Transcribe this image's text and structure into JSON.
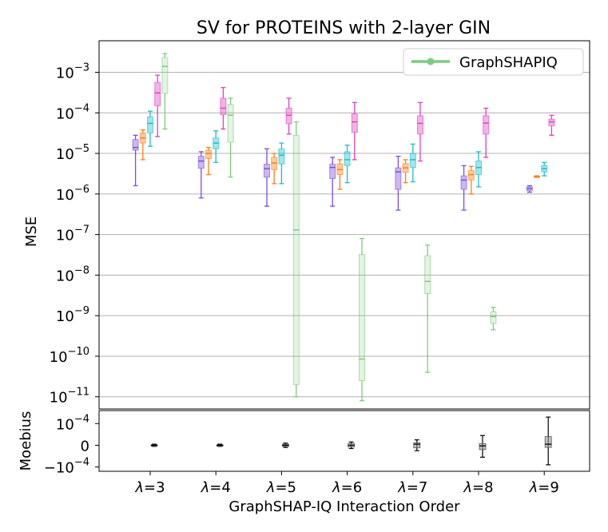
{
  "chart_data": {
    "type": "box",
    "title": "SV for PROTEINS with 2-layer GIN",
    "xlabel": "GraphSHAP-IQ Interaction Order",
    "categories": [
      "λ=3",
      "λ=4",
      "λ=5",
      "λ=6",
      "λ=7",
      "λ=8",
      "λ=9"
    ],
    "category_symbol": "λ",
    "category_values": [
      "=3",
      "=4",
      "=5",
      "=6",
      "=7",
      "=8",
      "=9"
    ],
    "main_panel": {
      "ylabel": "MSE",
      "yscale": "log",
      "ylim": [
        5e-12,
        0.006
      ],
      "yticks": [
        {
          "base": "10",
          "exp": "−11",
          "value": 1e-11
        },
        {
          "base": "10",
          "exp": "−10",
          "value": 1e-10
        },
        {
          "base": "10",
          "exp": "−9",
          "value": 1e-09
        },
        {
          "base": "10",
          "exp": "−8",
          "value": 1e-08
        },
        {
          "base": "10",
          "exp": "−7",
          "value": 1e-07
        },
        {
          "base": "10",
          "exp": "−6",
          "value": 1e-06
        },
        {
          "base": "10",
          "exp": "−5",
          "value": 1e-05
        },
        {
          "base": "10",
          "exp": "−4",
          "value": 0.0001
        },
        {
          "base": "10",
          "exp": "−3",
          "value": 0.001
        }
      ],
      "grid": "horizontal",
      "legend": {
        "label": "GraphSHAPIQ",
        "color": "#7ccc7c",
        "position": "top-right"
      },
      "series": [
        {
          "name": "purple",
          "color": "#7b4ddb",
          "offset": -2,
          "boxes": [
            {
              "cat": 0,
              "wlo": 1.6e-06,
              "q1": 1.2e-05,
              "med": 1.4e-05,
              "q3": 2.2e-05,
              "whi": 2.8e-05
            },
            {
              "cat": 1,
              "wlo": 8e-07,
              "q1": 4.3e-06,
              "med": 6.5e-06,
              "q3": 8.5e-06,
              "whi": 1.1e-05
            },
            {
              "cat": 2,
              "wlo": 5e-07,
              "q1": 2.6e-06,
              "med": 4.2e-06,
              "q3": 5.4e-06,
              "whi": 1.3e-05
            },
            {
              "cat": 3,
              "wlo": 5e-07,
              "q1": 2.4e-06,
              "med": 4.5e-06,
              "q3": 5.4e-06,
              "whi": 8e-06
            },
            {
              "cat": 4,
              "wlo": 4e-07,
              "q1": 1.3e-06,
              "med": 3.5e-06,
              "q3": 4.4e-06,
              "whi": 8.5e-06
            },
            {
              "cat": 5,
              "wlo": 4e-07,
              "q1": 1.3e-06,
              "med": 2.2e-06,
              "q3": 2.8e-06,
              "whi": 5e-06
            },
            {
              "cat": 6,
              "wlo": 1.1e-06,
              "q1": 1.2e-06,
              "med": 1.35e-06,
              "q3": 1.5e-06,
              "whi": 1.6e-06
            }
          ]
        },
        {
          "name": "orange",
          "color": "#ff7f0e",
          "offset": -1,
          "boxes": [
            {
              "cat": 0,
              "wlo": 7e-06,
              "q1": 1.8e-05,
              "med": 2.4e-05,
              "q3": 3.2e-05,
              "whi": 3.8e-05
            },
            {
              "cat": 1,
              "wlo": 3e-06,
              "q1": 7.5e-06,
              "med": 1e-05,
              "q3": 1.2e-05,
              "whi": 1.4e-05
            },
            {
              "cat": 2,
              "wlo": 1.8e-06,
              "q1": 4e-06,
              "med": 5.8e-06,
              "q3": 8e-06,
              "whi": 1e-05
            },
            {
              "cat": 3,
              "wlo": 1.3e-06,
              "q1": 3e-06,
              "med": 4e-06,
              "q3": 5.5e-06,
              "whi": 7e-06
            },
            {
              "cat": 4,
              "wlo": 1.9e-06,
              "q1": 3.4e-06,
              "med": 4.4e-06,
              "q3": 5.6e-06,
              "whi": 7e-06
            },
            {
              "cat": 5,
              "wlo": 1e-06,
              "q1": 2.2e-06,
              "med": 3e-06,
              "q3": 3.8e-06,
              "whi": 4.8e-06
            },
            {
              "cat": 6,
              "wlo": 2.6e-06,
              "q1": 2.55e-06,
              "med": 2.65e-06,
              "q3": 2.8e-06,
              "whi": 2.8e-06
            }
          ]
        },
        {
          "name": "cyan",
          "color": "#17becf",
          "offset": 0,
          "boxes": [
            {
              "cat": 0,
              "wlo": 1.5e-05,
              "q1": 3.2e-05,
              "med": 5.5e-05,
              "q3": 8e-05,
              "whi": 0.00011
            },
            {
              "cat": 1,
              "wlo": 6e-06,
              "q1": 1.3e-05,
              "med": 1.8e-05,
              "q3": 2.4e-05,
              "whi": 3.6e-05
            },
            {
              "cat": 2,
              "wlo": 1.8e-06,
              "q1": 5.5e-06,
              "med": 9e-06,
              "q3": 1.3e-05,
              "whi": 1.8e-05
            },
            {
              "cat": 3,
              "wlo": 1.9e-06,
              "q1": 5e-06,
              "med": 7e-06,
              "q3": 1.1e-05,
              "whi": 1.6e-05
            },
            {
              "cat": 4,
              "wlo": 2e-06,
              "q1": 4.5e-06,
              "med": 7e-06,
              "q3": 1e-05,
              "whi": 1.7e-05
            },
            {
              "cat": 5,
              "wlo": 1.5e-06,
              "q1": 3e-06,
              "med": 4.5e-06,
              "q3": 6.5e-06,
              "whi": 1.1e-05
            },
            {
              "cat": 6,
              "wlo": 2.8e-06,
              "q1": 3.5e-06,
              "med": 4.2e-06,
              "q3": 5e-06,
              "whi": 6e-06
            }
          ]
        },
        {
          "name": "magenta",
          "color": "#e040c0",
          "offset": 1,
          "boxes": [
            {
              "cat": 0,
              "wlo": 2.6e-05,
              "q1": 0.00015,
              "med": 0.00031,
              "q3": 0.00056,
              "whi": 0.00085
            },
            {
              "cat": 1,
              "wlo": 4e-05,
              "q1": 9e-05,
              "med": 0.00013,
              "q3": 0.00023,
              "whi": 0.00042
            },
            {
              "cat": 2,
              "wlo": 3e-05,
              "q1": 5.4e-05,
              "med": 8.7e-05,
              "q3": 0.00013,
              "whi": 0.00023
            },
            {
              "cat": 3,
              "wlo": 7e-06,
              "q1": 3.3e-05,
              "med": 6e-05,
              "q3": 9.5e-05,
              "whi": 0.00018
            },
            {
              "cat": 4,
              "wlo": 6.5e-06,
              "q1": 3e-05,
              "med": 5.5e-05,
              "q3": 8.5e-05,
              "whi": 0.00018
            },
            {
              "cat": 5,
              "wlo": 8e-06,
              "q1": 3e-05,
              "med": 5.6e-05,
              "q3": 8.5e-05,
              "whi": 0.00013
            },
            {
              "cat": 6,
              "wlo": 2.8e-05,
              "q1": 4.8e-05,
              "med": 6e-05,
              "q3": 7e-05,
              "whi": 8.7e-05
            }
          ]
        },
        {
          "name": "GraphSHAPIQ",
          "color": "#7ccc7c",
          "offset": 2,
          "boxes": [
            {
              "cat": 0,
              "wlo": 4e-05,
              "q1": 0.0003,
              "med": 0.0014,
              "q3": 0.0023,
              "whi": 0.0029
            },
            {
              "cat": 1,
              "wlo": 2.6e-06,
              "q1": 1.9e-05,
              "med": 8.8e-05,
              "q3": 0.00016,
              "whi": 0.00023
            },
            {
              "cat": 2,
              "wlo": 1e-11,
              "q1": 2e-11,
              "med": 1.3e-07,
              "q3": 2.8e-05,
              "whi": 6e-05
            },
            {
              "cat": 3,
              "wlo": 8e-12,
              "q1": 2.5e-11,
              "med": 8.5e-11,
              "q3": 3.2e-08,
              "whi": 8e-08
            },
            {
              "cat": 4,
              "wlo": 4e-11,
              "q1": 3.5e-09,
              "med": 7e-09,
              "q3": 3e-08,
              "whi": 5.5e-08
            },
            {
              "cat": 5,
              "wlo": 4.5e-10,
              "q1": 6.5e-10,
              "med": 9.5e-10,
              "q3": 1.25e-09,
              "whi": 1.6e-09
            }
          ]
        }
      ]
    },
    "moebius_panel": {
      "ylabel": "Moebius",
      "ylim": [
        -0.00012,
        0.00016
      ],
      "yticks": [
        {
          "prefix": "",
          "base": "10",
          "exp": "−4",
          "value": 0.0001
        },
        {
          "prefix": "",
          "base": "0",
          "exp": "",
          "value": 0
        },
        {
          "prefix": "−",
          "base": "10",
          "exp": "−4",
          "value": -0.0001
        }
      ],
      "color": "#000000",
      "boxes": [
        {
          "cat": 0,
          "wlo": -5e-06,
          "q1": -2e-06,
          "med": 0,
          "q3": 2e-06,
          "whi": 5e-06
        },
        {
          "cat": 1,
          "wlo": -5e-06,
          "q1": -2e-06,
          "med": 0,
          "q3": 2e-06,
          "whi": 5e-06
        },
        {
          "cat": 2,
          "wlo": -1e-05,
          "q1": -5e-06,
          "med": 0,
          "q3": 5e-06,
          "whi": 1e-05
        },
        {
          "cat": 3,
          "wlo": -1.5e-05,
          "q1": -8e-06,
          "med": 0,
          "q3": 8e-06,
          "whi": 1.5e-05
        },
        {
          "cat": 4,
          "wlo": -2.5e-05,
          "q1": -1.2e-05,
          "med": 5e-06,
          "q3": 1.2e-05,
          "whi": 2.5e-05
        },
        {
          "cat": 5,
          "wlo": -5.5e-05,
          "q1": -2e-05,
          "med": -3e-06,
          "q3": 8e-06,
          "whi": 4.5e-05
        },
        {
          "cat": 6,
          "wlo": -9e-05,
          "q1": -1e-05,
          "med": 5e-06,
          "q3": 4e-05,
          "whi": 0.00013
        }
      ]
    }
  }
}
